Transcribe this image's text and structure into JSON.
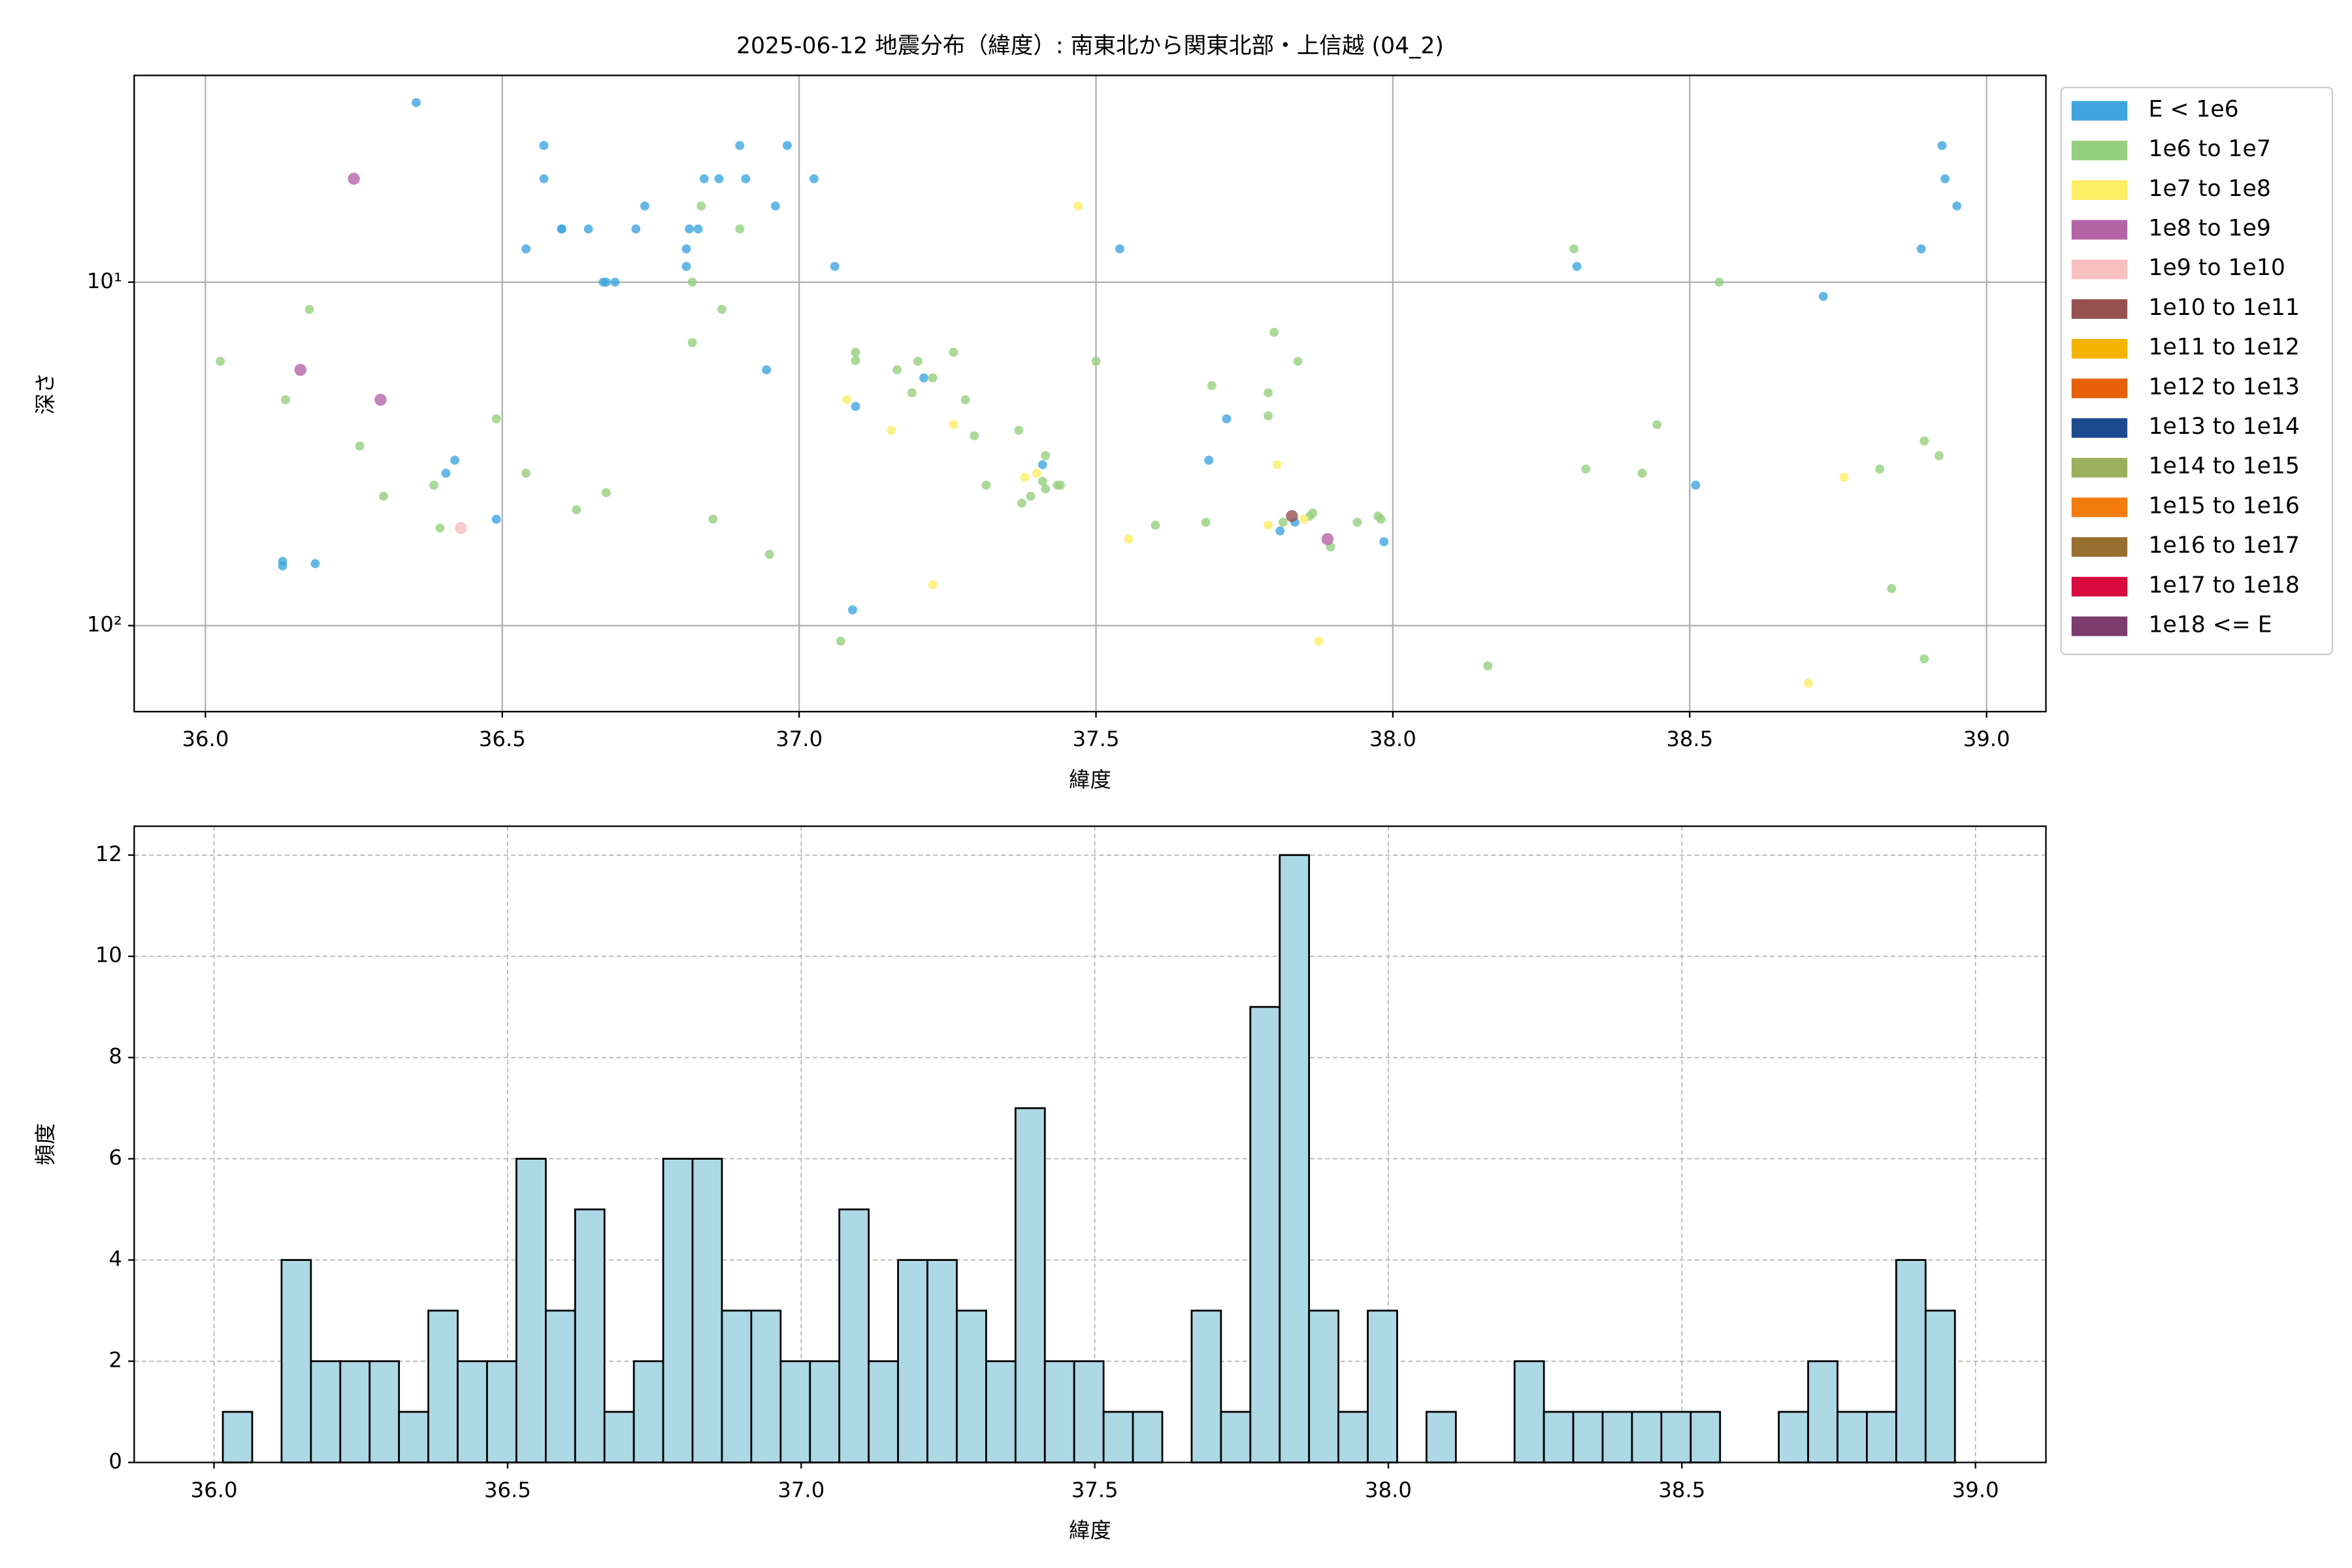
{
  "chart_data": [
    {
      "type": "scatter",
      "title": "2025-06-12 地震分布（緯度）: 南東北から関東北部・上信越 (04_2)",
      "xlabel": "緯度",
      "ylabel": "深さ",
      "xlim": [
        35.88,
        39.1
      ],
      "ylim": [
        2.5,
        178
      ],
      "yscale": "log",
      "y_inverted": true,
      "grid": true,
      "legend": "outside-right",
      "xticks": [
        {
          "value": 36,
          "label": "36.0"
        },
        36.5,
        {
          "value": 37,
          "label": "37.0"
        },
        37.5,
        {
          "value": 38,
          "label": "38.0"
        },
        38.5,
        {
          "value": 39,
          "label": "39.0"
        }
      ],
      "yticks": [
        {
          "value": 10,
          "label": "10¹"
        },
        {
          "value": 100,
          "label": "10²"
        }
      ],
      "series": [
        {
          "name": "E < 1e6",
          "color": "#3fa6e0",
          "x": [
            36.355,
            36.57,
            36.57,
            36.6,
            36.6,
            36.645,
            36.54,
            36.725,
            36.74,
            36.815,
            36.83,
            36.81,
            36.81,
            36.84,
            36.865,
            36.9,
            36.91,
            36.96,
            36.98,
            37.025,
            37.06,
            36.67,
            36.675,
            36.69,
            36.945,
            37.095,
            37.21,
            36.42,
            36.405,
            36.49,
            36.13,
            36.13,
            36.185,
            37.09,
            37.54,
            37.41,
            37.72,
            37.69,
            37.81,
            37.835,
            37.985,
            38.31,
            38.51,
            38.725,
            38.89,
            38.925,
            38.93,
            38.95
          ],
          "values": [
            3.0,
            4.0,
            5.0,
            7.0,
            7.0,
            7.0,
            8.0,
            7.0,
            6.0,
            7.0,
            7.0,
            8.0,
            9.0,
            5.0,
            5.0,
            4.0,
            5.0,
            6.0,
            4.0,
            5.0,
            9.0,
            10,
            10,
            10,
            18,
            23,
            19,
            33,
            36,
            49,
            65,
            67,
            66,
            90,
            8.0,
            34,
            25,
            33,
            53,
            50,
            57,
            9.0,
            39,
            11,
            8.0,
            4.0,
            5.0,
            6.0
          ]
        },
        {
          "name": "1e6 to 1e7",
          "color": "#95cf7e",
          "x": [
            36.025,
            36.135,
            36.175,
            36.26,
            36.3,
            36.385,
            36.395,
            36.49,
            36.54,
            36.625,
            36.675,
            36.835,
            36.82,
            36.82,
            36.87,
            36.855,
            36.9,
            36.95,
            37.07,
            37.095,
            37.095,
            37.165,
            37.2,
            37.225,
            37.19,
            37.26,
            37.28,
            37.295,
            37.315,
            37.37,
            37.375,
            37.39,
            37.41,
            37.415,
            37.415,
            37.435,
            37.44,
            37.5,
            37.6,
            37.685,
            37.695,
            37.8,
            37.79,
            37.84,
            37.79,
            37.815,
            37.86,
            37.865,
            37.895,
            37.94,
            37.975,
            37.98,
            38.16,
            38.305,
            38.325,
            38.42,
            38.445,
            38.55,
            38.82,
            38.84,
            38.895,
            38.92,
            38.895
          ],
          "values": [
            17,
            22,
            12,
            30,
            42,
            39,
            52,
            25,
            36,
            46,
            41,
            6.0,
            10,
            15,
            12,
            49,
            7.0,
            62,
            111,
            16,
            16.9,
            18,
            17,
            19,
            21,
            16,
            22,
            28,
            39,
            27,
            44,
            42,
            38,
            32,
            40,
            39,
            39,
            17,
            51,
            50,
            20,
            14,
            21,
            17,
            24.5,
            50,
            48,
            47,
            59,
            50,
            48,
            49,
            131,
            8.0,
            35,
            36,
            26,
            10,
            35,
            78,
            29,
            32,
            125
          ]
        },
        {
          "name": "1e7 to 1e8",
          "color": "#fdee66",
          "x": [
            37.47,
            37.08,
            37.155,
            37.26,
            37.38,
            37.4,
            37.555,
            37.805,
            37.79,
            37.85,
            37.875,
            37.225,
            38.76,
            38.7
          ],
          "values": [
            6.0,
            22,
            27,
            26,
            37,
            36,
            56,
            34,
            51,
            49,
            111,
            76,
            37,
            147
          ]
        },
        {
          "name": "1e8 to 1e9",
          "color": "#b565a7",
          "x": [
            36.25,
            36.16,
            36.295,
            37.89
          ],
          "values": [
            5.0,
            18,
            22,
            56
          ]
        },
        {
          "name": "1e9 to 1e10",
          "color": "#f7bfbe",
          "x": [
            36.43
          ],
          "values": [
            52
          ]
        },
        {
          "name": "1e10 to 1e11",
          "color": "#955251",
          "x": [
            37.83
          ],
          "values": [
            48
          ]
        },
        {
          "name": "1e11 to 1e12",
          "color": "#f5b400",
          "x": [],
          "values": []
        },
        {
          "name": "1e12 to 1e13",
          "color": "#e8600c",
          "x": [],
          "values": []
        },
        {
          "name": "1e13 to 1e14",
          "color": "#1d4a8f",
          "x": [],
          "values": []
        },
        {
          "name": "1e14 to 1e15",
          "color": "#9bb05a",
          "x": [],
          "values": []
        },
        {
          "name": "1e15 to 1e16",
          "color": "#f47c0f",
          "x": [],
          "values": []
        },
        {
          "name": "1e16 to 1e17",
          "color": "#97702f",
          "x": [],
          "values": []
        },
        {
          "name": "1e17 to 1e18",
          "color": "#d80a3e",
          "x": [],
          "values": []
        },
        {
          "name": "1e18 <= E",
          "color": "#7c3c6e",
          "x": [],
          "values": []
        }
      ]
    },
    {
      "type": "histogram",
      "xlabel": "緯度",
      "ylabel": "頻度",
      "xlim": [
        35.864,
        39.12
      ],
      "ylim": [
        0,
        12.57
      ],
      "grid": true,
      "color": "#add8e6",
      "edgecolor": "#000000",
      "xticks": [
        {
          "value": 36,
          "label": "36.0"
        },
        36.5,
        {
          "value": 37,
          "label": "37.0"
        },
        37.5,
        {
          "value": 38,
          "label": "38.0"
        },
        38.5,
        {
          "value": 39,
          "label": "39.0"
        }
      ],
      "yticks": [
        0,
        2,
        4,
        6,
        8,
        10,
        12
      ],
      "bins": [
        36.015,
        36.065,
        36.115,
        36.165,
        36.215,
        36.265,
        36.315,
        36.365,
        36.415,
        36.465,
        36.515,
        36.565,
        36.615,
        36.665,
        36.715,
        36.765,
        36.815,
        36.865,
        36.915,
        36.965,
        37.015,
        37.065,
        37.115,
        37.165,
        37.215,
        37.265,
        37.315,
        37.365,
        37.415,
        37.465,
        37.515,
        37.565,
        37.615,
        37.665,
        37.715,
        37.765,
        37.815,
        37.865,
        37.915,
        37.965,
        38.015,
        38.065,
        38.115,
        38.165,
        38.215,
        38.265,
        38.315,
        38.365,
        38.415,
        38.465,
        38.515,
        38.565,
        38.615,
        38.665,
        38.715,
        38.765,
        38.815,
        38.865,
        38.915,
        38.965
      ],
      "values": [
        1,
        0,
        4,
        2,
        2,
        2,
        1,
        3,
        2,
        2,
        6,
        3,
        5,
        1,
        2,
        6,
        6,
        3,
        3,
        2,
        2,
        5,
        2,
        4,
        4,
        3,
        2,
        7,
        2,
        2,
        1,
        1,
        0,
        3,
        1,
        9,
        12,
        3,
        1,
        3,
        0,
        1,
        0,
        0,
        2,
        1,
        1,
        1,
        1,
        1,
        1,
        0,
        0,
        1,
        2,
        1,
        1,
        4,
        3
      ]
    }
  ]
}
